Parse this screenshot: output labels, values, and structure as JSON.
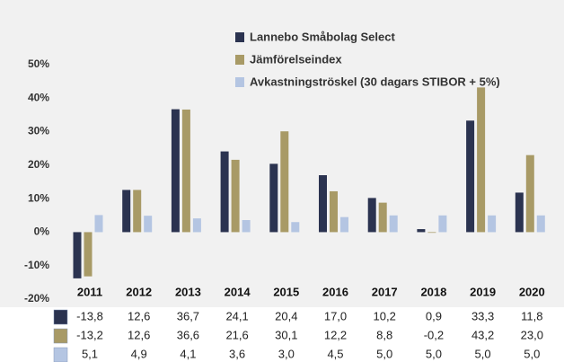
{
  "chart_data": {
    "type": "bar",
    "categories": [
      "2011",
      "2012",
      "2013",
      "2014",
      "2015",
      "2016",
      "2017",
      "2018",
      "2019",
      "2020"
    ],
    "series": [
      {
        "name": "Lannebo Småbolag Select",
        "color": "#2b3350",
        "values": [
          -13.8,
          12.6,
          36.7,
          24.1,
          20.4,
          17.0,
          10.2,
          0.9,
          33.3,
          11.8
        ],
        "value_labels": [
          "-13,8",
          "12,6",
          "36,7",
          "24,1",
          "20,4",
          "17,0",
          "10,2",
          "0,9",
          "33,3",
          "11,8"
        ]
      },
      {
        "name": "Jämförelseindex",
        "color": "#a89a66",
        "values": [
          -13.2,
          12.6,
          36.6,
          21.6,
          30.1,
          12.2,
          8.8,
          -0.2,
          43.2,
          23.0
        ],
        "value_labels": [
          "-13,2",
          "12,6",
          "36,6",
          "21,6",
          "30,1",
          "12,2",
          "8,8",
          "-0,2",
          "43,2",
          "23,0"
        ]
      },
      {
        "name": "Avkastningströskel (30 dagars STIBOR + 5%)",
        "color": "#b4c5e2",
        "values": [
          5.1,
          4.9,
          4.1,
          3.6,
          3.0,
          4.5,
          5.0,
          5.0,
          5.0,
          5.0
        ],
        "value_labels": [
          "5,1",
          "4,9",
          "4,1",
          "3,6",
          "3,0",
          "4,5",
          "5,0",
          "5,0",
          "5,0",
          "5,0"
        ]
      }
    ],
    "ylim": [
      -20,
      50
    ],
    "yticks": [
      {
        "value": -20,
        "label": "-20%"
      },
      {
        "value": -10,
        "label": "-10%"
      },
      {
        "value": 0,
        "label": "0%"
      },
      {
        "value": 10,
        "label": "10%"
      },
      {
        "value": 20,
        "label": "20%"
      },
      {
        "value": 30,
        "label": "30%"
      },
      {
        "value": 40,
        "label": "40%"
      },
      {
        "value": 50,
        "label": "50%"
      }
    ]
  }
}
